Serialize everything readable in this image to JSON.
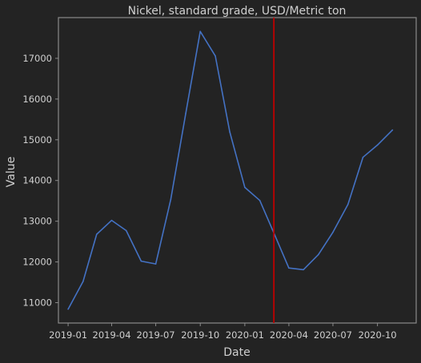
{
  "chart_data": {
    "type": "line",
    "title": "Nickel, standard grade, USD/Metric ton",
    "xlabel": "Date",
    "ylabel": "Value",
    "x": [
      "2019-01",
      "2019-02",
      "2019-03",
      "2019-04",
      "2019-05",
      "2019-06",
      "2019-07",
      "2019-08",
      "2019-09",
      "2019-10",
      "2019-11",
      "2019-12",
      "2020-01",
      "2020-02",
      "2020-03",
      "2020-04",
      "2020-05",
      "2020-06",
      "2020-07",
      "2020-08",
      "2020-09",
      "2020-10",
      "2020-11"
    ],
    "values": [
      10840,
      11520,
      12680,
      13020,
      12770,
      12020,
      11950,
      13530,
      15650,
      17660,
      17060,
      15190,
      13830,
      13510,
      12710,
      11850,
      11810,
      12180,
      12730,
      13410,
      14570,
      14870,
      15240
    ],
    "xticks": [
      "2019-01",
      "2019-04",
      "2019-07",
      "2019-10",
      "2020-01",
      "2020-04",
      "2020-07",
      "2020-10"
    ],
    "yticks": [
      11000,
      12000,
      13000,
      14000,
      15000,
      16000,
      17000
    ],
    "xlim": [
      "2018-12-12",
      "2020-12-20"
    ],
    "ylim": [
      10500,
      18000
    ],
    "vline_x": "2020-03",
    "grid": false,
    "colors": {
      "background": "#232323",
      "line": "#4472c4",
      "vline": "#c00000",
      "axes": "#8a8a8a",
      "text": "#cfcfcf"
    }
  }
}
